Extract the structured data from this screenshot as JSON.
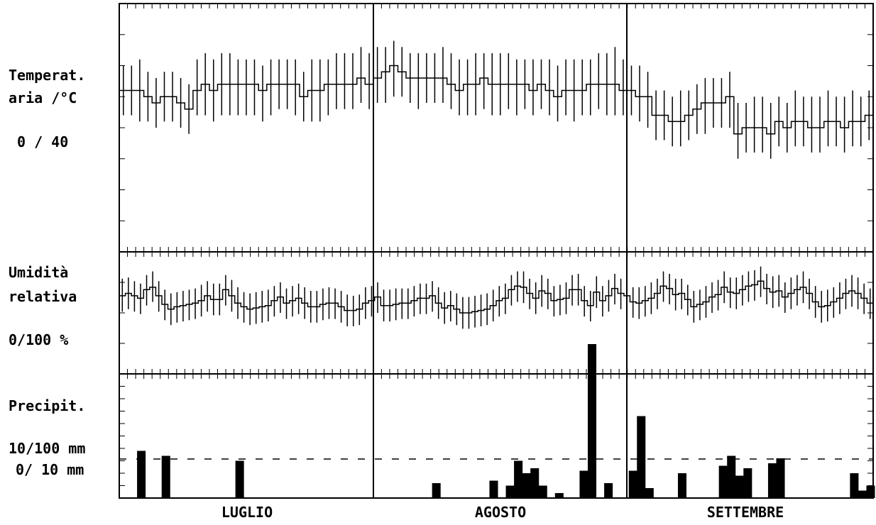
{
  "labels": {
    "temp_1": "Temperat.",
    "temp_2": "aria /°C",
    "temp_3": "0 / 40",
    "hum_1": "Umidità",
    "hum_2": "relativa",
    "hum_3": "0/100 %",
    "prec_1": "Precipit.",
    "prec_2": "10/100 mm",
    "prec_3": "0/ 10 mm"
  },
  "months": [
    "LUGLIO",
    "AGOSTO",
    "SETTEMBRE"
  ],
  "chart_data": [
    {
      "type": "line",
      "title": "Temperat. aria /°C",
      "ylabel": "0 / 40",
      "ylim": [
        0,
        40
      ],
      "x": "day index 1-92 (1 Jul - 30 Sep)",
      "series": [
        {
          "name": "mean",
          "values": [
            26,
            26,
            26,
            25,
            24,
            25,
            25,
            24,
            23,
            26,
            27,
            26,
            27,
            27,
            27,
            27,
            27,
            26,
            27,
            27,
            27,
            27,
            25,
            26,
            26,
            27,
            27,
            27,
            27,
            28,
            27,
            28,
            29,
            30,
            29,
            28,
            28,
            28,
            28,
            28,
            27,
            26,
            27,
            27,
            28,
            27,
            27,
            27,
            27,
            27,
            26,
            27,
            26,
            25,
            26,
            26,
            26,
            27,
            27,
            27,
            27,
            26,
            26,
            25,
            25,
            22,
            22,
            21,
            21,
            22,
            23,
            24,
            24,
            24,
            25,
            19,
            20,
            20,
            20,
            19,
            21,
            20,
            21,
            21,
            20,
            20,
            21,
            21,
            20,
            21,
            21,
            22
          ]
        },
        {
          "name": "max",
          "values": [
            30,
            30,
            31,
            29,
            28,
            29,
            29,
            28,
            27,
            31,
            32,
            31,
            32,
            32,
            31,
            31,
            31,
            30,
            31,
            31,
            31,
            31,
            29,
            31,
            31,
            31,
            32,
            32,
            32,
            33,
            32,
            33,
            33,
            34,
            33,
            32,
            32,
            32,
            32,
            33,
            32,
            31,
            31,
            32,
            32,
            32,
            32,
            32,
            31,
            31,
            31,
            31,
            31,
            30,
            31,
            31,
            31,
            31,
            32,
            32,
            33,
            31,
            30,
            30,
            29,
            26,
            26,
            25,
            26,
            26,
            27,
            28,
            28,
            28,
            29,
            24,
            24,
            25,
            25,
            24,
            25,
            24,
            26,
            25,
            25,
            25,
            26,
            25,
            25,
            26,
            25,
            26
          ]
        },
        {
          "name": "min",
          "values": [
            22,
            22,
            21,
            21,
            20,
            21,
            21,
            20,
            19,
            22,
            22,
            21,
            22,
            22,
            22,
            22,
            22,
            21,
            22,
            23,
            23,
            22,
            21,
            21,
            21,
            22,
            23,
            23,
            23,
            24,
            23,
            24,
            24,
            25,
            25,
            24,
            23,
            24,
            24,
            24,
            23,
            22,
            22,
            22,
            23,
            22,
            22,
            23,
            22,
            23,
            22,
            23,
            22,
            21,
            22,
            21,
            22,
            22,
            23,
            22,
            22,
            22,
            22,
            21,
            20,
            18,
            18,
            17,
            17,
            18,
            19,
            19,
            20,
            20,
            20,
            15,
            16,
            16,
            16,
            15,
            17,
            16,
            17,
            17,
            16,
            16,
            17,
            17,
            16,
            17,
            17,
            18
          ]
        }
      ]
    },
    {
      "type": "line",
      "title": "Umidità relativa",
      "ylabel": "0/100 %",
      "ylim": [
        0,
        100
      ],
      "series": [
        {
          "name": "mean",
          "values": [
            64,
            66,
            64,
            62,
            69,
            71,
            64,
            57,
            53,
            55,
            56,
            57,
            58,
            60,
            64,
            61,
            61,
            69,
            64,
            58,
            55,
            53,
            54,
            55,
            56,
            60,
            63,
            58,
            60,
            62,
            58,
            55,
            55,
            57,
            58,
            58,
            55,
            52,
            52,
            53,
            58,
            60,
            63,
            56,
            56,
            57,
            58,
            58,
            60,
            62,
            62,
            64,
            58,
            54,
            56,
            53,
            50,
            50,
            51,
            52,
            53,
            56,
            60,
            62,
            69,
            72,
            71,
            66,
            62,
            68,
            66,
            60,
            61,
            62,
            69,
            69,
            60,
            56,
            67,
            60,
            64,
            70,
            66,
            64,
            59,
            58,
            60,
            62,
            66,
            72,
            70,
            65,
            66,
            61,
            55,
            57,
            59,
            63,
            65,
            71,
            67,
            66,
            69,
            72,
            73,
            76,
            70,
            67,
            68,
            63,
            66,
            69,
            71,
            66,
            59,
            55,
            56,
            59,
            62,
            66,
            68,
            66,
            62,
            58
          ]
        },
        {
          "name": "max",
          "values": [
            78,
            79,
            76,
            74,
            81,
            84,
            76,
            69,
            66,
            67,
            68,
            69,
            70,
            73,
            76,
            74,
            74,
            81,
            77,
            71,
            67,
            66,
            67,
            68,
            69,
            72,
            75,
            70,
            72,
            74,
            71,
            68,
            68,
            70,
            71,
            70,
            68,
            65,
            64,
            65,
            71,
            72,
            75,
            69,
            69,
            70,
            70,
            70,
            72,
            74,
            74,
            76,
            71,
            67,
            68,
            66,
            63,
            63,
            64,
            65,
            66,
            69,
            72,
            74,
            81,
            84,
            84,
            78,
            75,
            81,
            78,
            72,
            73,
            75,
            81,
            82,
            72,
            68,
            80,
            72,
            77,
            82,
            78,
            77,
            71,
            71,
            72,
            75,
            78,
            84,
            82,
            78,
            78,
            73,
            68,
            69,
            72,
            75,
            77,
            84,
            79,
            79,
            81,
            84,
            85,
            88,
            82,
            80,
            81,
            75,
            79,
            81,
            84,
            78,
            72,
            68,
            69,
            71,
            75,
            78,
            81,
            79,
            74,
            70
          ]
        },
        {
          "name": "min",
          "values": [
            51,
            53,
            51,
            49,
            56,
            59,
            51,
            44,
            40,
            42,
            43,
            44,
            45,
            47,
            51,
            48,
            48,
            56,
            51,
            45,
            42,
            40,
            41,
            42,
            43,
            47,
            50,
            45,
            47,
            49,
            45,
            42,
            42,
            44,
            45,
            45,
            42,
            39,
            39,
            40,
            45,
            47,
            50,
            43,
            43,
            44,
            45,
            45,
            47,
            49,
            49,
            51,
            45,
            41,
            43,
            40,
            37,
            37,
            38,
            39,
            40,
            43,
            47,
            49,
            56,
            59,
            58,
            53,
            49,
            55,
            53,
            47,
            48,
            49,
            56,
            56,
            47,
            43,
            54,
            47,
            51,
            57,
            53,
            51,
            46,
            45,
            47,
            49,
            53,
            59,
            57,
            52,
            53,
            48,
            42,
            44,
            46,
            50,
            52,
            58,
            54,
            53,
            56,
            59,
            60,
            63,
            57,
            54,
            55,
            50,
            53,
            56,
            58,
            53,
            46,
            42,
            43,
            46,
            49,
            53,
            55,
            53,
            49,
            45
          ]
        }
      ]
    },
    {
      "type": "bar",
      "title": "Precipit.",
      "ylabel": "10/100 mm  0/ 10 mm",
      "categories": [
        "Lug 3",
        "Lug 6",
        "Lug 15",
        "Ago 8",
        "Ago 15",
        "Ago 17",
        "Ago 18",
        "Ago 19",
        "Ago 20",
        "Ago 21",
        "Ago 23",
        "Ago 26",
        "Ago 27",
        "Ago 29",
        "Set 1",
        "Set 2",
        "Set 3",
        "Set 7",
        "Set 12",
        "Set 13",
        "Set 14",
        "Set 15",
        "Set 18",
        "Set 19",
        "Set 28",
        "Set 29",
        "Set 30"
      ],
      "values": [
        19,
        17,
        15,
        6,
        7,
        5,
        15,
        10,
        12,
        5,
        2,
        11,
        62,
        6,
        11,
        33,
        4,
        10,
        13,
        17,
        9,
        12,
        14,
        16,
        10,
        3,
        5
      ]
    }
  ]
}
